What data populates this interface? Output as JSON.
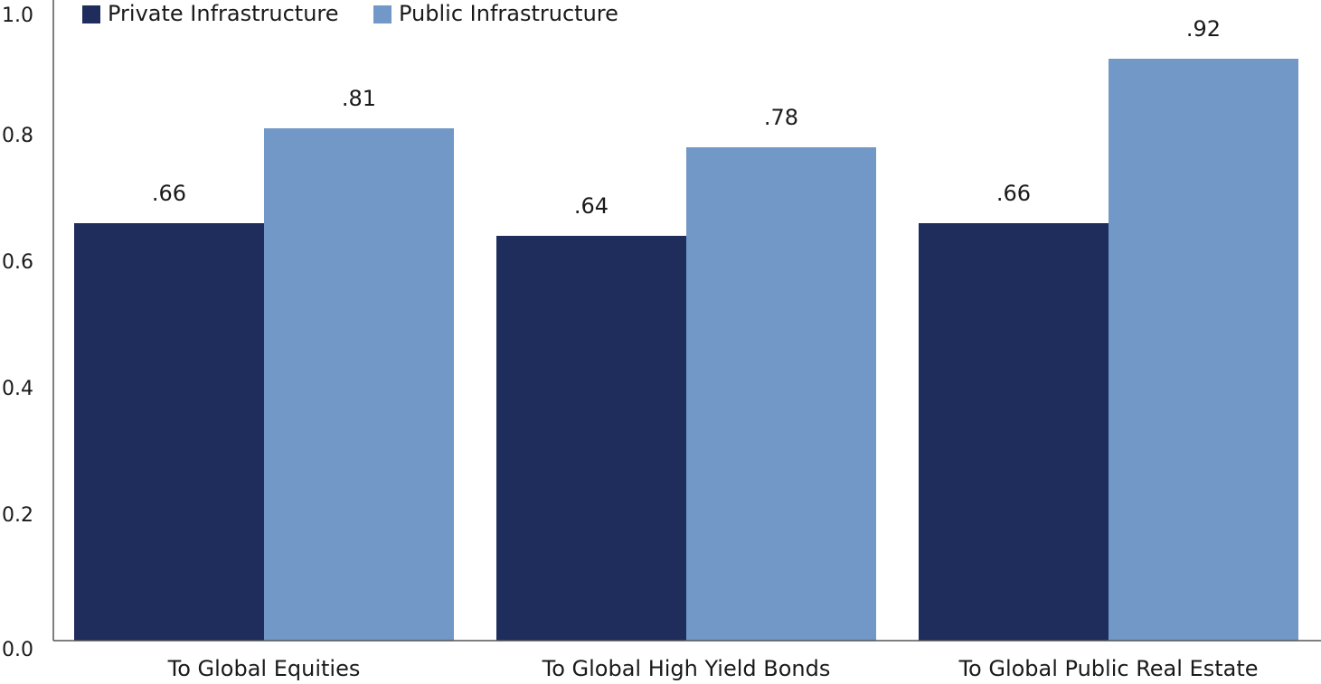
{
  "chart_data": {
    "type": "bar",
    "categories": [
      "To Global Equities",
      "To Global High Yield Bonds",
      "To Global Public Real Estate"
    ],
    "series": [
      {
        "name": "Private Infrastructure",
        "values": [
          0.66,
          0.64,
          0.66
        ],
        "labels": [
          ".66",
          ".64",
          ".66"
        ],
        "color": "#1f2d5c"
      },
      {
        "name": "Public Infrastructure",
        "values": [
          0.81,
          0.78,
          0.92
        ],
        "labels": [
          ".81",
          ".78",
          ".92"
        ],
        "color": "#7298c7"
      }
    ],
    "ylim": [
      0,
      1.0
    ],
    "yticks": [
      0.0,
      0.2,
      0.4,
      0.6,
      0.8,
      1.0
    ],
    "ytick_labels": [
      "0.0",
      "0.2",
      "0.4",
      "0.6",
      "0.8",
      "1.0"
    ],
    "grid": false,
    "legend_position": "top-left"
  }
}
